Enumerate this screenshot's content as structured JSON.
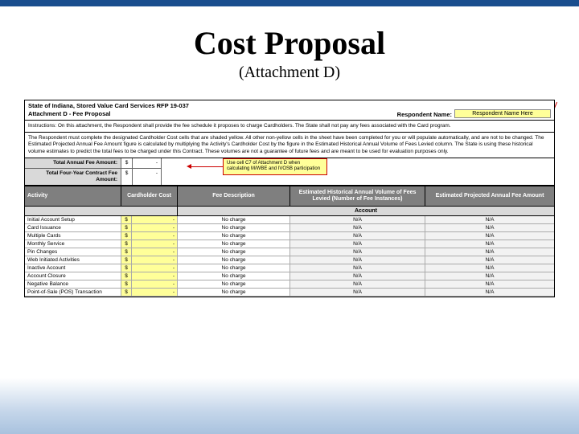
{
  "title": "Cost Proposal",
  "subtitle": "(Attachment D)",
  "header": {
    "line1": "State of Indiana, Stored Value Card Services RFP 19-037",
    "line2": "Attachment D - Fee Proposal",
    "respondent_label": "Respondent Name:",
    "respondent_value": "Respondent Name Here"
  },
  "instructions1": "Instructions: On this attachment, the Respondent shall provide the fee schedule it proposes to charge Cardholders. The State shall not pay any fees associated with the Card program.",
  "instructions2": "The Respondent must complete the designated Cardholder Cost cells that are shaded yellow. All other non-yellow cells in the sheet have been completed for you or will populate automatically, and are not to be changed. The Estimated Projected Annual Fee Amount figure is calculated by multiplying the Activity's Cardholder Cost by the figure in the Estimated Historical Annual Volume of Fees Levied column. The State is using these historical volume estimates to predict the total fees to be charged under this Contract. These volumes are not a guarantee of future fees and are meant to be used for evaluation purposes only.",
  "totals": {
    "row1_label": "Total Annual Fee Amount:",
    "row2_label": "Total Four-Year Contract Fee Amount:",
    "cur": "$",
    "val": "-"
  },
  "note": "Use cell C7 of Attachment D when calculating M/WBE and IVOSB participation",
  "columns": {
    "activity": "Activity",
    "cost": "Cardholder Cost",
    "desc": "Fee Description",
    "vol": "Estimated Historical Annual Volume of Fees Levied (Number of Fee Instances)",
    "amt": "Estimated Projected Annual Fee Amount"
  },
  "section_label": "Account",
  "rows": [
    {
      "activity": "Initial Account Setup",
      "cur": "$",
      "val": "-",
      "desc": "No charge",
      "vol": "N/A",
      "amt": "N/A"
    },
    {
      "activity": "Card Issuance",
      "cur": "$",
      "val": "-",
      "desc": "No charge",
      "vol": "N/A",
      "amt": "N/A"
    },
    {
      "activity": "Multiple Cards",
      "cur": "$",
      "val": "-",
      "desc": "No charge",
      "vol": "N/A",
      "amt": "N/A"
    },
    {
      "activity": "Monthly Service",
      "cur": "$",
      "val": "-",
      "desc": "No charge",
      "vol": "N/A",
      "amt": "N/A"
    },
    {
      "activity": "Pin Changes",
      "cur": "$",
      "val": "-",
      "desc": "No charge",
      "vol": "N/A",
      "amt": "N/A"
    },
    {
      "activity": "Web Initiated Activities",
      "cur": "$",
      "val": "-",
      "desc": "No charge",
      "vol": "N/A",
      "amt": "N/A"
    },
    {
      "activity": "Inactive Account",
      "cur": "$",
      "val": "-",
      "desc": "No charge",
      "vol": "N/A",
      "amt": "N/A"
    },
    {
      "activity": "Account Closure",
      "cur": "$",
      "val": "-",
      "desc": "No charge",
      "vol": "N/A",
      "amt": "N/A"
    },
    {
      "activity": "Negative Balance",
      "cur": "$",
      "val": "-",
      "desc": "No charge",
      "vol": "N/A",
      "amt": "N/A"
    },
    {
      "activity": "Point-of-Sale (POS) Transaction",
      "cur": "$",
      "val": "-",
      "desc": "No charge",
      "vol": "N/A",
      "amt": "N/A"
    }
  ],
  "colors": {
    "top_bar": "#1a4e8e",
    "yellow": "#ffff99",
    "grey_header": "#7f7f7f",
    "light_grey": "#d9d9d9",
    "red": "#c00"
  }
}
